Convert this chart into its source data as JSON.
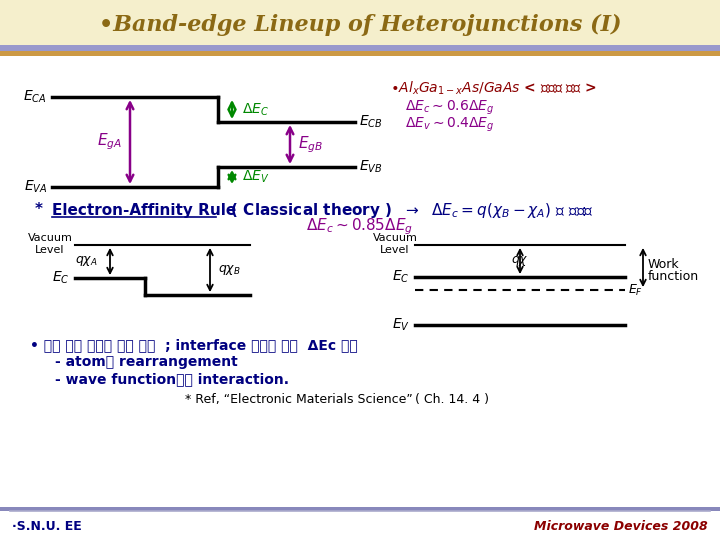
{
  "title": "•Band-edge Lineup of Heterojunctions (I)",
  "title_color": "#8B6914",
  "footer_left": "·S.N.U. EE",
  "footer_right": "Microwave Devices 2008"
}
